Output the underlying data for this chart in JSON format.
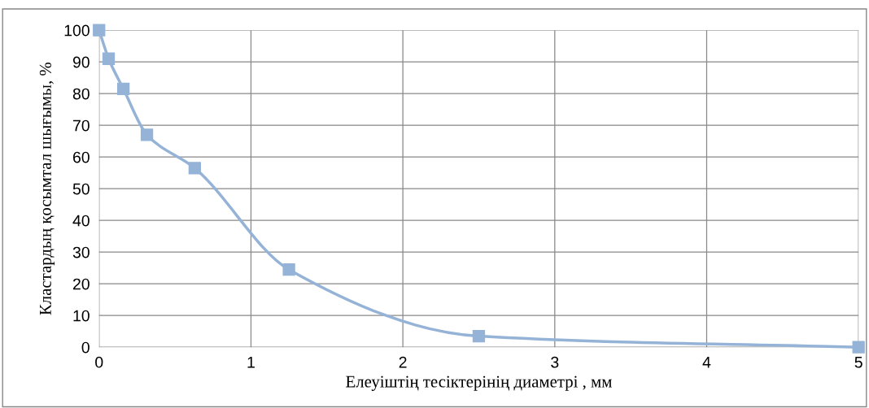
{
  "chart_data": {
    "type": "line",
    "xlabel": "Елеуiштің тесiктерiнің диаметрi , мм",
    "ylabel": "Кластардың қосымтал шығымы, %",
    "x": [
      0,
      0.063,
      0.16,
      0.315,
      0.63,
      1.25,
      2.5,
      5
    ],
    "series": [
      {
        "color": "#95b3d7",
        "values": [
          100,
          91,
          81.5,
          67,
          56.5,
          24.5,
          3.5,
          0
        ]
      }
    ],
    "xlim": [
      0,
      5
    ],
    "xticks": [
      0,
      1,
      2,
      3,
      4,
      5
    ],
    "ylim": [
      0,
      100
    ],
    "yticks": [
      0,
      10,
      20,
      30,
      40,
      50,
      60,
      70,
      80,
      90,
      100
    ],
    "grid": true,
    "marker": "square",
    "line_style": "solid"
  }
}
